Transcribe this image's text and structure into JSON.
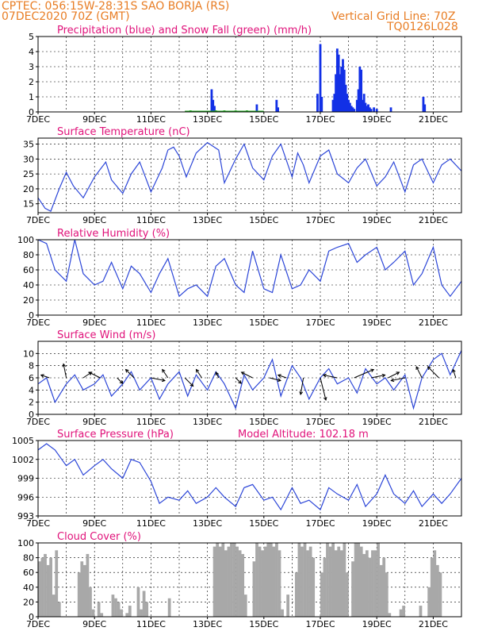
{
  "header": {
    "line1": "CPTEC:   056:15W-28:31S   SAO BORJA (RS)",
    "line2": "07DEC2020 70Z (GMT)",
    "grid_note": "Vertical Grid Line: 70Z",
    "code": "TQ0126L028"
  },
  "colors": {
    "header": "#e87d24",
    "titles": "#e0127a",
    "precip": "#1230e6",
    "snow": "#1ea81e",
    "line": "#2c46d8",
    "cloud": "#a8a8a8"
  },
  "x_axis": {
    "ticks": [
      "7DEC",
      "9DEC",
      "11DEC",
      "13DEC",
      "15DEC",
      "17DEC",
      "19DEC",
      "21DEC"
    ],
    "tick_days": [
      0,
      2,
      4,
      6,
      8,
      10,
      12,
      14
    ],
    "range_days": [
      0,
      15
    ]
  },
  "chart_data": [
    {
      "type": "bar",
      "title": "Precipitation (blue) and Snow Fall (green) (mm/h)",
      "ylim": [
        0,
        5
      ],
      "yticks": [
        0,
        1,
        2,
        3,
        4,
        5
      ],
      "series": [
        {
          "name": "Precipitation",
          "x": [
            6.15,
            6.2,
            6.25,
            7.75,
            8.45,
            8.5,
            9.9,
            10.0,
            10.05,
            10.45,
            10.5,
            10.55,
            10.6,
            10.65,
            10.7,
            10.75,
            10.8,
            10.85,
            10.9,
            10.95,
            11.0,
            11.05,
            11.1,
            11.15,
            11.2,
            11.3,
            11.35,
            11.4,
            11.45,
            11.5,
            11.55,
            11.6,
            11.65,
            11.7,
            11.75,
            11.8,
            11.9,
            12.0,
            12.5,
            13.65,
            13.7
          ],
          "values": [
            1.5,
            0.8,
            0.4,
            0.5,
            0.8,
            0.3,
            1.2,
            4.5,
            1.0,
            0.8,
            1.2,
            2.5,
            4.2,
            3.8,
            2.5,
            3.0,
            3.5,
            2.8,
            1.8,
            1.2,
            0.8,
            0.6,
            0.4,
            0.3,
            0.2,
            0.8,
            1.5,
            3.0,
            2.8,
            0.8,
            1.2,
            0.6,
            0.4,
            0.5,
            0.3,
            0.2,
            0.3,
            0.2,
            0.3,
            1.0,
            0.5
          ]
        },
        {
          "name": "Snow Fall",
          "x": [
            5.4,
            6.3,
            6.6,
            7.0,
            7.4
          ],
          "values": [
            0.05,
            0.05,
            0.05,
            0.05,
            0.05
          ]
        }
      ]
    },
    {
      "type": "line",
      "title": "Surface Temperature (nC)",
      "ylim": [
        12,
        37
      ],
      "yticks": [
        15,
        20,
        25,
        30,
        35
      ],
      "x": [
        0,
        0.25,
        0.45,
        0.75,
        1.0,
        1.25,
        1.6,
        2.0,
        2.4,
        2.6,
        3.0,
        3.3,
        3.6,
        4.0,
        4.4,
        4.6,
        4.8,
        5.0,
        5.25,
        5.6,
        6.0,
        6.4,
        6.6,
        7.0,
        7.3,
        7.6,
        8.0,
        8.3,
        8.6,
        9.0,
        9.2,
        9.4,
        9.6,
        10.0,
        10.3,
        10.6,
        11.0,
        11.3,
        11.6,
        12.0,
        12.3,
        12.6,
        13.0,
        13.3,
        13.6,
        14.0,
        14.3,
        14.6,
        15.0
      ],
      "values": [
        17,
        13.5,
        12.5,
        20,
        25.5,
        21,
        17,
        24,
        29,
        23,
        18.5,
        25,
        29,
        19,
        27,
        33,
        34,
        31,
        24,
        32,
        35.5,
        33,
        22,
        30,
        35,
        27,
        23,
        31,
        35,
        24,
        32,
        28,
        22,
        31,
        33,
        25,
        22,
        27,
        30,
        21,
        24,
        29,
        19,
        28,
        30,
        22,
        28,
        30,
        26
      ]
    },
    {
      "type": "line",
      "title": "Relative Humidity (%)",
      "ylim": [
        0,
        100
      ],
      "yticks": [
        0,
        20,
        40,
        60,
        80,
        100
      ],
      "x": [
        0,
        0.3,
        0.6,
        1.0,
        1.3,
        1.6,
        2.0,
        2.3,
        2.6,
        3.0,
        3.3,
        3.6,
        4.0,
        4.3,
        4.6,
        5.0,
        5.3,
        5.6,
        6.0,
        6.3,
        6.6,
        7.0,
        7.3,
        7.6,
        8.0,
        8.3,
        8.6,
        9.0,
        9.3,
        9.6,
        10.0,
        10.3,
        10.6,
        11.0,
        11.3,
        11.6,
        12.0,
        12.3,
        12.6,
        13.0,
        13.3,
        13.6,
        14.0,
        14.3,
        14.6,
        15.0
      ],
      "values": [
        100,
        95,
        60,
        45,
        100,
        55,
        40,
        45,
        70,
        35,
        65,
        55,
        30,
        55,
        75,
        25,
        35,
        40,
        25,
        65,
        75,
        40,
        30,
        85,
        35,
        30,
        80,
        35,
        40,
        60,
        45,
        85,
        90,
        95,
        70,
        80,
        90,
        60,
        70,
        85,
        40,
        55,
        90,
        40,
        25,
        45
      ]
    },
    {
      "type": "line",
      "title": "Surface Wind (m/s)",
      "ylim": [
        0,
        12
      ],
      "yticks": [
        0,
        2,
        4,
        6,
        8,
        10
      ],
      "x": [
        0,
        0.3,
        0.6,
        1.0,
        1.3,
        1.6,
        2.0,
        2.3,
        2.6,
        3.0,
        3.3,
        3.6,
        4.0,
        4.3,
        4.6,
        5.0,
        5.3,
        5.6,
        6.0,
        6.3,
        6.6,
        7.0,
        7.3,
        7.6,
        8.0,
        8.3,
        8.6,
        9.0,
        9.3,
        9.6,
        10.0,
        10.3,
        10.6,
        11.0,
        11.3,
        11.6,
        12.0,
        12.3,
        12.6,
        13.0,
        13.3,
        13.6,
        14.0,
        14.3,
        14.6,
        15.0
      ],
      "values": [
        5,
        6,
        2,
        5,
        6.5,
        4,
        5,
        6.5,
        3,
        5,
        7,
        4,
        6,
        2.5,
        5,
        7,
        3,
        6.5,
        4,
        7,
        5,
        1,
        6.5,
        4,
        6,
        9,
        3,
        8,
        6,
        2.5,
        6,
        7.5,
        5,
        6,
        3.5,
        7.5,
        5,
        6,
        4,
        6.5,
        1,
        6,
        9,
        10,
        6.5,
        10.5
      ],
      "arrows": {
        "x": [
          0.4,
          1.0,
          1.6,
          2.2,
          2.8,
          3.4,
          4.0,
          4.6,
          5.2,
          5.8,
          6.4,
          7.0,
          7.6,
          8.2,
          8.8,
          9.4,
          10.0,
          10.6,
          11.2,
          11.8,
          12.4,
          13.0,
          13.6,
          14.2,
          14.8
        ],
        "u": [
          -1.5,
          -0.5,
          1.5,
          -2.0,
          1.0,
          -1.5,
          2.5,
          -1.0,
          1.5,
          -1.0,
          -0.5,
          1.0,
          -2.0,
          2.0,
          -1.5,
          -0.5,
          1.0,
          -2.5,
          3.5,
          2.5,
          2.0,
          -2.5,
          -1.0,
          -2.0,
          -0.5
        ],
        "v": [
          0.5,
          2.5,
          1.0,
          1.0,
          -1.0,
          1.5,
          -0.5,
          1.5,
          -1.5,
          1.5,
          1.0,
          -1.0,
          1.0,
          -0.5,
          0.5,
          -3.0,
          -4.0,
          0.5,
          1.5,
          0.5,
          1.0,
          -0.5,
          2.0,
          2.0,
          1.5
        ]
      }
    },
    {
      "type": "line",
      "title": "Surface Pressure (hPa)",
      "annotation": "Model Altitude: 102.18 m",
      "ylim": [
        993,
        1005
      ],
      "yticks": [
        993,
        996,
        999,
        1002,
        1005
      ],
      "ytick_labels": [
        "993",
        "996",
        "999",
        "1002",
        "1005"
      ],
      "x": [
        0,
        0.3,
        0.6,
        1.0,
        1.3,
        1.6,
        2.0,
        2.3,
        2.6,
        3.0,
        3.3,
        3.6,
        4.0,
        4.3,
        4.6,
        5.0,
        5.3,
        5.6,
        6.0,
        6.3,
        6.6,
        7.0,
        7.3,
        7.6,
        8.0,
        8.3,
        8.6,
        9.0,
        9.3,
        9.6,
        10.0,
        10.3,
        10.6,
        11.0,
        11.3,
        11.6,
        12.0,
        12.3,
        12.6,
        13.0,
        13.3,
        13.6,
        14.0,
        14.3,
        14.6,
        15.0
      ],
      "values": [
        1003.5,
        1004.5,
        1003.5,
        1001,
        1002,
        999.5,
        1001,
        1002,
        1000.5,
        999,
        1002,
        1001.5,
        998.5,
        995,
        996,
        995.5,
        997,
        995,
        996,
        997.5,
        996,
        994.5,
        997.5,
        998,
        995.5,
        996,
        994,
        997.5,
        995,
        995.5,
        994,
        997.5,
        996.5,
        995.5,
        998,
        994.5,
        996.5,
        999.5,
        996.5,
        995,
        997,
        994.5,
        996.5,
        995,
        996.5,
        999
      ]
    },
    {
      "type": "area",
      "title": "Cloud Cover (%)",
      "ylim": [
        0,
        100
      ],
      "yticks": [
        0,
        20,
        40,
        60,
        80,
        100
      ],
      "x": [
        0,
        0.1,
        0.2,
        0.3,
        0.4,
        0.5,
        0.6,
        0.7,
        0.8,
        0.9,
        1.0,
        1.1,
        1.2,
        1.3,
        1.4,
        1.5,
        1.6,
        1.7,
        1.8,
        1.9,
        2.0,
        2.1,
        2.2,
        2.3,
        2.4,
        2.5,
        2.6,
        2.7,
        2.8,
        2.9,
        3.0,
        3.1,
        3.2,
        3.3,
        3.4,
        3.5,
        3.6,
        3.7,
        3.8,
        3.9,
        4.0,
        4.1,
        4.2,
        4.3,
        4.4,
        4.5,
        4.6,
        4.7,
        4.8,
        4.9,
        5.0,
        5.1,
        5.2,
        5.3,
        5.4,
        5.5,
        5.6,
        5.7,
        5.8,
        5.9,
        6.0,
        6.1,
        6.2,
        6.3,
        6.4,
        6.5,
        6.6,
        6.7,
        6.8,
        6.9,
        7.0,
        7.1,
        7.2,
        7.3,
        7.4,
        7.5,
        7.6,
        7.7,
        7.8,
        7.9,
        8.0,
        8.1,
        8.2,
        8.3,
        8.4,
        8.5,
        8.6,
        8.7,
        8.8,
        8.9,
        9.0,
        9.1,
        9.2,
        9.3,
        9.4,
        9.5,
        9.6,
        9.7,
        9.8,
        9.9,
        10.0,
        10.1,
        10.2,
        10.3,
        10.4,
        10.5,
        10.6,
        10.7,
        10.8,
        10.9,
        11.0,
        11.1,
        11.2,
        11.3,
        11.4,
        11.5,
        11.6,
        11.7,
        11.8,
        11.9,
        12.0,
        12.1,
        12.2,
        12.3,
        12.4,
        12.5,
        12.6,
        12.7,
        12.8,
        12.9,
        13.0,
        13.1,
        13.2,
        13.3,
        13.4,
        13.5,
        13.6,
        13.7,
        13.8,
        13.9,
        14.0,
        14.1,
        14.2,
        14.3,
        14.4,
        14.5,
        14.6,
        14.7,
        14.8,
        14.9
      ],
      "values": [
        75,
        80,
        85,
        70,
        80,
        30,
        90,
        20,
        0,
        0,
        0,
        0,
        0,
        0,
        60,
        75,
        70,
        85,
        40,
        10,
        0,
        20,
        5,
        0,
        0,
        0,
        30,
        25,
        20,
        10,
        0,
        5,
        15,
        0,
        0,
        40,
        10,
        35,
        20,
        0,
        0,
        0,
        0,
        0,
        0,
        0,
        25,
        0,
        0,
        0,
        0,
        0,
        0,
        0,
        0,
        0,
        0,
        0,
        0,
        0,
        0,
        0,
        95,
        100,
        95,
        100,
        90,
        95,
        100,
        100,
        95,
        90,
        85,
        30,
        0,
        0,
        75,
        100,
        95,
        90,
        95,
        100,
        100,
        95,
        100,
        90,
        10,
        0,
        30,
        0,
        0,
        60,
        100,
        95,
        100,
        90,
        95,
        80,
        0,
        0,
        60,
        80,
        100,
        95,
        100,
        90,
        95,
        90,
        100,
        60,
        0,
        75,
        100,
        100,
        95,
        85,
        90,
        80,
        90,
        90,
        100,
        70,
        80,
        60,
        5,
        0,
        0,
        0,
        10,
        15,
        0,
        0,
        0,
        0,
        0,
        15,
        0,
        0,
        40,
        80,
        90,
        70,
        60,
        0,
        0,
        0,
        0,
        0,
        0,
        0
      ]
    }
  ]
}
